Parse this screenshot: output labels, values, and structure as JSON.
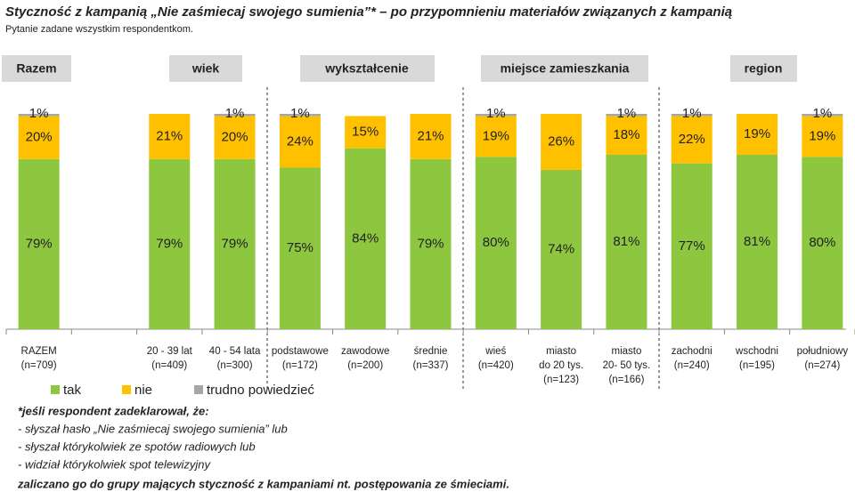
{
  "chart_data": {
    "type": "stacked-bar",
    "title": "Styczność z kampanią „Nie zaśmiecaj swojego sumienia”* – po przypomnieniu materiałów związanych z kampanią",
    "subtitle": "Pytanie zadane wszystkim respondentkom.",
    "groups": [
      "Razem",
      "wiek",
      "wykształcenie",
      "miejsce zamieszkania",
      "region"
    ],
    "categories": [
      [
        "RAZEM",
        "(n=709)"
      ],
      null,
      [
        "20 - 39 lat",
        "(n=409)"
      ],
      [
        "40 - 54 lata",
        "(n=300)"
      ],
      [
        "podstawowe",
        "(n=172)"
      ],
      [
        "zawodowe",
        "(n=200)"
      ],
      [
        "średnie",
        "(n=337)"
      ],
      [
        "wieś",
        "(n=420)"
      ],
      [
        "miasto",
        "do 20 tys.",
        "(n=123)"
      ],
      [
        "miasto",
        "20- 50 tys.",
        "(n=166)"
      ],
      [
        "zachodni",
        "(n=240)"
      ],
      [
        "wschodni",
        "(n=195)"
      ],
      [
        "południowy",
        "(n=274)"
      ]
    ],
    "series": [
      {
        "name": "tak",
        "color": "#8dc63f",
        "values": [
          79,
          null,
          79,
          79,
          75,
          84,
          79,
          80,
          74,
          81,
          77,
          81,
          80
        ],
        "value_labels": [
          "79%",
          null,
          "79%",
          "79%",
          "75%",
          "84%",
          "79%",
          "80%",
          "74%",
          "81%",
          "77%",
          "81%",
          "80%"
        ]
      },
      {
        "name": "nie",
        "color": "#ffc000",
        "values": [
          20,
          null,
          21,
          20,
          24,
          15,
          21,
          19,
          26,
          18,
          22,
          19,
          19
        ],
        "value_labels": [
          "20%",
          null,
          "21%",
          "20%",
          "24%",
          "15%",
          "21%",
          "19%",
          "26%",
          "18%",
          "22%",
          "19%",
          "19%"
        ]
      },
      {
        "name": "trudno powiedzieć",
        "color": "#a6a6a6",
        "values": [
          1,
          null,
          null,
          1,
          1,
          null,
          null,
          1,
          null,
          1,
          1,
          null,
          1
        ],
        "value_labels": [
          "1%",
          null,
          null,
          "1%",
          "1%",
          null,
          null,
          "1%",
          null,
          "1%",
          "1%",
          null,
          "1%"
        ]
      }
    ],
    "ylim": [
      0,
      100
    ],
    "footnote": {
      "heading": "*jeśli respondent zadeklarował, że:",
      "items": [
        "-  słyszał hasło „Nie zaśmiecaj swojego sumienia” lub",
        "-  słyszał którykolwiek ze spotów radiowych lub",
        "-  widział którykolwiek spot telewizyjny"
      ],
      "closing": "zaliczano go do grupy mających styczność z kampaniami nt. postępowania ze śmieciami."
    }
  }
}
